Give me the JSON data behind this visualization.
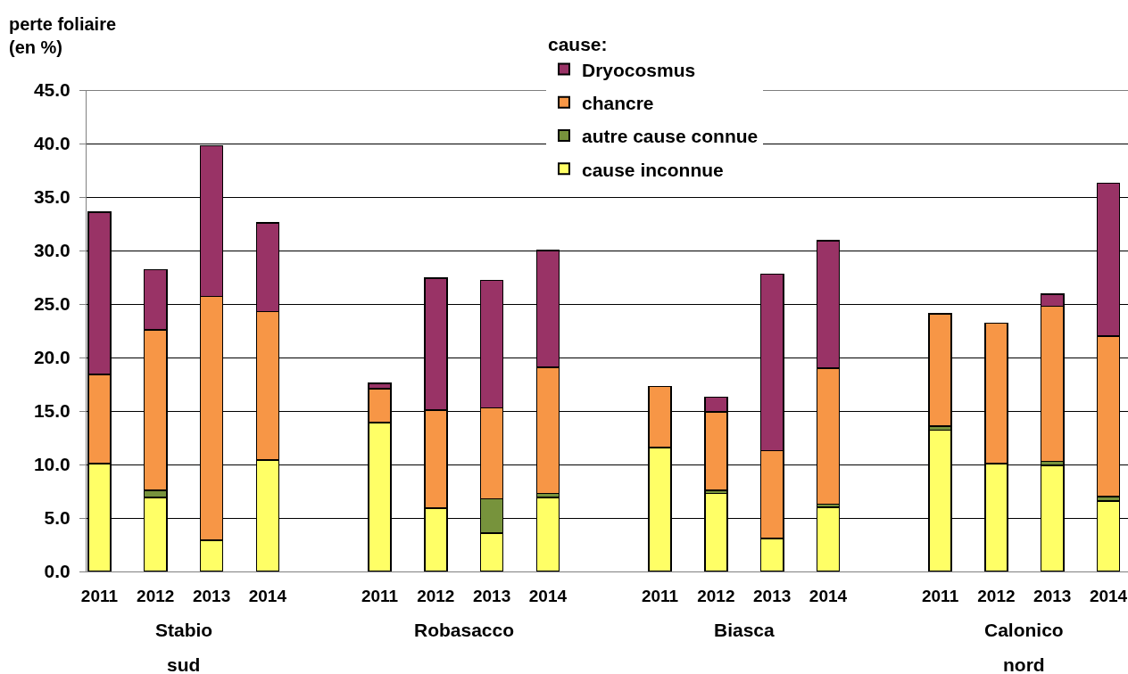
{
  "chart_data": {
    "type": "bar",
    "stacked": true,
    "ylabel": "perte foliaire\n(en %)",
    "legend_title": "cause:",
    "categories": [
      "2011",
      "2012",
      "2013",
      "2014",
      null,
      "2011",
      "2012",
      "2013",
      "2014",
      null,
      "2011",
      "2012",
      "2013",
      "2014",
      null,
      "2011",
      "2012",
      "2013",
      "2014"
    ],
    "series": [
      {
        "name": "cause inconnue",
        "color": "#ffff66",
        "values": [
          10.1,
          6.9,
          2.9,
          10.4,
          null,
          13.9,
          5.9,
          3.6,
          6.9,
          null,
          11.6,
          7.3,
          3.1,
          6.0,
          null,
          13.2,
          10.1,
          9.9,
          6.6
        ]
      },
      {
        "name": "autre cause connue",
        "color": "#77933c",
        "values": [
          null,
          0.7,
          null,
          null,
          null,
          null,
          null,
          3.2,
          0.4,
          null,
          null,
          0.3,
          null,
          0.3,
          null,
          0.4,
          null,
          0.4,
          0.4
        ]
      },
      {
        "name": "chancre",
        "color": "#f79646",
        "values": [
          8.3,
          15.0,
          22.8,
          13.9,
          null,
          3.2,
          9.2,
          8.5,
          11.8,
          null,
          5.7,
          7.3,
          8.2,
          12.7,
          null,
          10.5,
          13.1,
          14.5,
          15.0
        ]
      },
      {
        "name": "Dryocosmus",
        "color": "#993366",
        "values": [
          15.2,
          5.6,
          14.1,
          8.3,
          null,
          0.5,
          12.3,
          11.9,
          10.9,
          null,
          null,
          1.4,
          16.5,
          11.9,
          null,
          null,
          null,
          1.1,
          14.3
        ]
      }
    ],
    "ylim": [
      0,
      45
    ],
    "yticks": [
      {
        "value": 0,
        "label": "0.0"
      },
      {
        "value": 5,
        "label": "5.0"
      },
      {
        "value": 10,
        "label": "10.0"
      },
      {
        "value": 15,
        "label": "15.0"
      },
      {
        "value": 20,
        "label": "20.0"
      },
      {
        "value": 25,
        "label": "25.0"
      },
      {
        "value": 30,
        "label": "30.0"
      },
      {
        "value": 35,
        "label": "35.0"
      },
      {
        "value": 40,
        "label": "40.0"
      },
      {
        "value": 45,
        "label": "45.0"
      }
    ],
    "annotations": [
      "Stabio\nsud",
      "Robasacco",
      "Biasca",
      "Calonico\nnord"
    ],
    "grid": "y",
    "legend": "top"
  }
}
